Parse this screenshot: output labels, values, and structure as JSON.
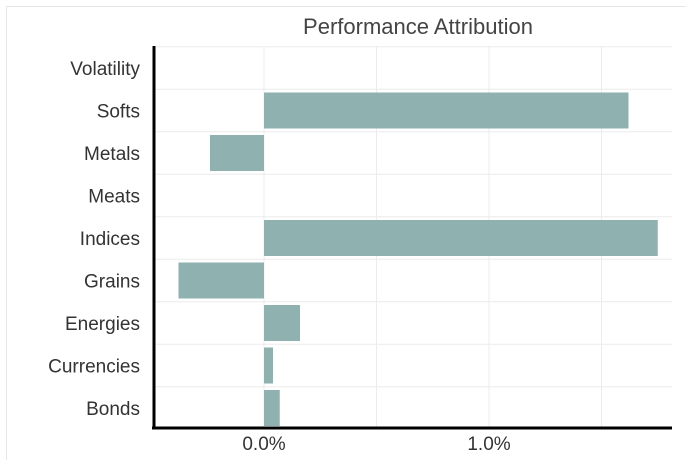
{
  "chart_data": {
    "type": "bar",
    "orientation": "horizontal",
    "title": "Performance Attribution",
    "xlabel": "",
    "ylabel": "",
    "categories": [
      "Volatility",
      "Softs",
      "Metals",
      "Meats",
      "Indices",
      "Grains",
      "Energies",
      "Currencies",
      "Bonds"
    ],
    "values": [
      0.0,
      1.62,
      -0.24,
      0.0,
      1.75,
      -0.38,
      0.16,
      0.04,
      0.07
    ],
    "x_ticks": [
      {
        "value": 0.0,
        "label": "0.0%"
      },
      {
        "value": 1.0,
        "label": "1.0%"
      }
    ],
    "xlim": [
      -0.48,
      1.8
    ],
    "grid": true,
    "legend": "none",
    "bar_color": "#8fb1b0"
  }
}
